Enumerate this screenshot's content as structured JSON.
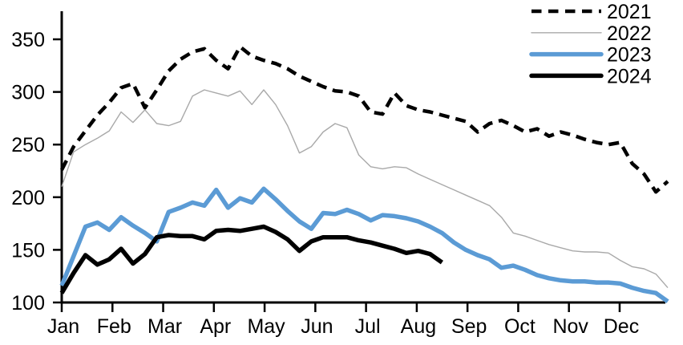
{
  "chart_data": {
    "type": "line",
    "title": "",
    "xlabel": "",
    "ylabel": "",
    "x_sampling": "weekly",
    "categories": [
      "Jan",
      "Feb",
      "Mar",
      "Apr",
      "May",
      "Jun",
      "Jul",
      "Aug",
      "Sep",
      "Oct",
      "Nov",
      "Dec"
    ],
    "y_ticks": [
      "100",
      "150",
      "200",
      "250",
      "300",
      "350"
    ],
    "ylim": [
      100,
      375
    ],
    "grid": false,
    "legend_position": "top-right-inside",
    "axis_color": "#000000",
    "series": [
      {
        "name": "2021",
        "color": "#000000",
        "line_style": "dashed",
        "line_width": 4.5,
        "values": [
          226,
          248,
          263,
          278,
          290,
          304,
          308,
          285,
          302,
          320,
          331,
          338,
          341,
          330,
          322,
          343,
          334,
          330,
          327,
          322,
          315,
          310,
          305,
          301,
          300,
          296,
          281,
          279,
          299,
          287,
          283,
          281,
          278,
          275,
          272,
          262,
          270,
          273,
          268,
          262,
          265,
          258,
          262,
          259,
          255,
          252,
          250,
          252,
          232,
          222,
          205,
          215
        ]
      },
      {
        "name": "2022",
        "color": "#A9A9A9",
        "line_style": "solid",
        "line_width": 1.4,
        "values": [
          210,
          243,
          250,
          256,
          263,
          281,
          271,
          283,
          270,
          268,
          272,
          296,
          302,
          299,
          296,
          301,
          288,
          302,
          288,
          268,
          242,
          248,
          262,
          270,
          266,
          240,
          229,
          227,
          229,
          228,
          222,
          217,
          212,
          207,
          202,
          197,
          192,
          181,
          166,
          163,
          159,
          155,
          152,
          149,
          148,
          148,
          147,
          140,
          134,
          132,
          127,
          114
        ]
      },
      {
        "name": "2023",
        "color": "#5B9BD5",
        "line_style": "solid",
        "line_width": 5.5,
        "values": [
          116,
          144,
          172,
          176,
          169,
          181,
          173,
          166,
          158,
          186,
          190,
          195,
          192,
          207,
          190,
          199,
          195,
          208,
          198,
          187,
          177,
          170,
          185,
          184,
          188,
          184,
          178,
          183,
          182,
          180,
          177,
          172,
          166,
          157,
          150,
          145,
          141,
          133,
          135,
          131,
          126,
          123,
          121,
          120,
          120,
          119,
          119,
          118,
          114,
          111,
          109,
          101
        ]
      },
      {
        "name": "2024",
        "color": "#000000",
        "line_style": "solid",
        "line_width": 5.5,
        "values": [
          109,
          128,
          145,
          136,
          141,
          151,
          137,
          146,
          162,
          164,
          163,
          163,
          160,
          168,
          169,
          168,
          170,
          172,
          167,
          160,
          149,
          158,
          162,
          162,
          162,
          159,
          157,
          154,
          151,
          147,
          149,
          146,
          138
        ]
      }
    ]
  },
  "legend": {
    "items": [
      {
        "label": "2021"
      },
      {
        "label": "2022"
      },
      {
        "label": "2023"
      },
      {
        "label": "2024"
      }
    ]
  }
}
